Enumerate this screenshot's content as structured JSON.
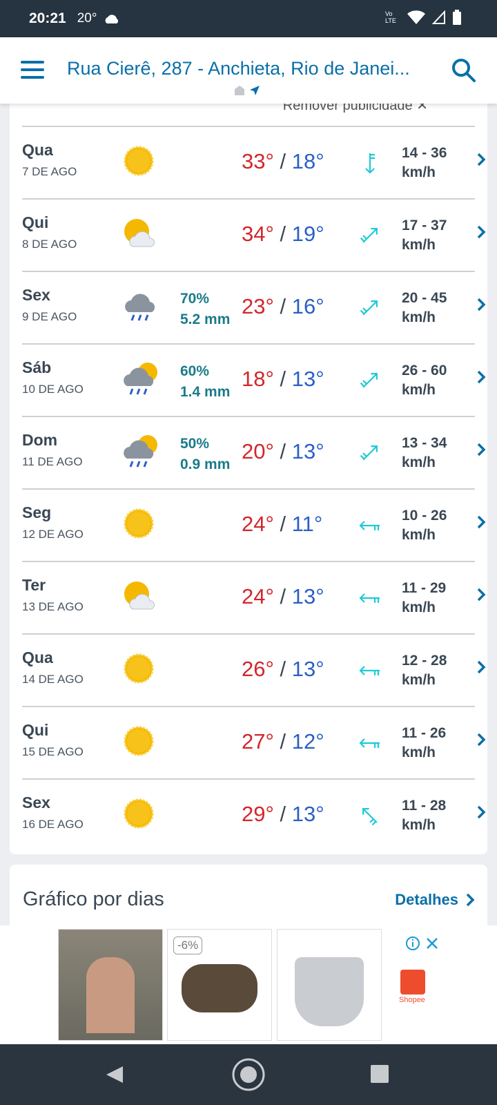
{
  "status": {
    "time": "20:21",
    "temp": "20°",
    "network": "Vo LTE"
  },
  "header": {
    "title": "Rua Cierê, 287 - Anchieta, Rio de Janei..."
  },
  "remove_ad": "Remover publicidade ✕",
  "days": [
    {
      "name": "Qua",
      "date": "7 DE AGO",
      "icon": "sun",
      "rain_pct": "",
      "rain_mm": "",
      "max": "33°",
      "min": "18°",
      "wind_icon": "south",
      "wind": "14 - 36",
      "unit": "km/h"
    },
    {
      "name": "Qui",
      "date": "8 DE AGO",
      "icon": "sun-cloud",
      "rain_pct": "",
      "rain_mm": "",
      "max": "34°",
      "min": "19°",
      "wind_icon": "southwest",
      "wind": "17 - 37",
      "unit": "km/h"
    },
    {
      "name": "Sex",
      "date": "9 DE AGO",
      "icon": "rain-cloud",
      "rain_pct": "70%",
      "rain_mm": "5.2 mm",
      "max": "23°",
      "min": "16°",
      "wind_icon": "southwest",
      "wind": "20 - 45",
      "unit": "km/h"
    },
    {
      "name": "Sáb",
      "date": "10 DE AGO",
      "icon": "sun-rain",
      "rain_pct": "60%",
      "rain_mm": "1.4 mm",
      "max": "18°",
      "min": "13°",
      "wind_icon": "southwest",
      "wind": "26 - 60",
      "unit": "km/h"
    },
    {
      "name": "Dom",
      "date": "11 DE AGO",
      "icon": "sun-rain",
      "rain_pct": "50%",
      "rain_mm": "0.9 mm",
      "max": "20°",
      "min": "13°",
      "wind_icon": "southwest",
      "wind": "13 - 34",
      "unit": "km/h"
    },
    {
      "name": "Seg",
      "date": "12 DE AGO",
      "icon": "sun",
      "rain_pct": "",
      "rain_mm": "",
      "max": "24°",
      "min": "11°",
      "wind_icon": "east",
      "wind": "10 - 26",
      "unit": "km/h"
    },
    {
      "name": "Ter",
      "date": "13 DE AGO",
      "icon": "sun-cloud",
      "rain_pct": "",
      "rain_mm": "",
      "max": "24°",
      "min": "13°",
      "wind_icon": "east",
      "wind": "11 - 29",
      "unit": "km/h"
    },
    {
      "name": "Qua",
      "date": "14 DE AGO",
      "icon": "sun",
      "rain_pct": "",
      "rain_mm": "",
      "max": "26°",
      "min": "13°",
      "wind_icon": "east",
      "wind": "12 - 28",
      "unit": "km/h"
    },
    {
      "name": "Qui",
      "date": "15 DE AGO",
      "icon": "sun",
      "rain_pct": "",
      "rain_mm": "",
      "max": "27°",
      "min": "12°",
      "wind_icon": "east",
      "wind": "11 - 26",
      "unit": "km/h"
    },
    {
      "name": "Sex",
      "date": "16 DE AGO",
      "icon": "sun",
      "rain_pct": "",
      "rain_mm": "",
      "max": "29°",
      "min": "13°",
      "wind_icon": "northeast",
      "wind": "11 - 28",
      "unit": "km/h"
    }
  ],
  "chart_section": {
    "title": "Gráfico por dias",
    "details": "Detalhes"
  },
  "ad": {
    "discount": "-6%",
    "brand": "Shopee"
  },
  "colors": {
    "max": "#d3262b",
    "min": "#2a5fc6",
    "accent": "#0a6fa8",
    "wind": "#1ecad6"
  }
}
